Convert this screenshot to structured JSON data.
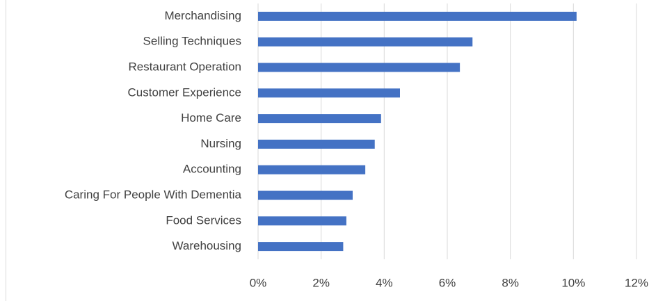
{
  "chart_data": {
    "type": "bar",
    "orientation": "horizontal",
    "categories": [
      "Merchandising",
      "Selling Techniques",
      "Restaurant Operation",
      "Customer Experience",
      "Home Care",
      "Nursing",
      "Accounting",
      "Caring For People With Dementia",
      "Food Services",
      "Warehousing"
    ],
    "values": [
      10.1,
      6.8,
      6.4,
      4.5,
      3.9,
      3.7,
      3.4,
      3.0,
      2.8,
      2.7
    ],
    "color": "#4472c4",
    "xlim": [
      0,
      12
    ],
    "xticks": [
      {
        "value": 0,
        "label": "0%"
      },
      {
        "value": 2,
        "label": "2%"
      },
      {
        "value": 4,
        "label": "4%"
      },
      {
        "value": 6,
        "label": "6%"
      },
      {
        "value": 8,
        "label": "8%"
      },
      {
        "value": 10,
        "label": "10%"
      },
      {
        "value": 12,
        "label": "12%"
      }
    ],
    "grid": true
  }
}
